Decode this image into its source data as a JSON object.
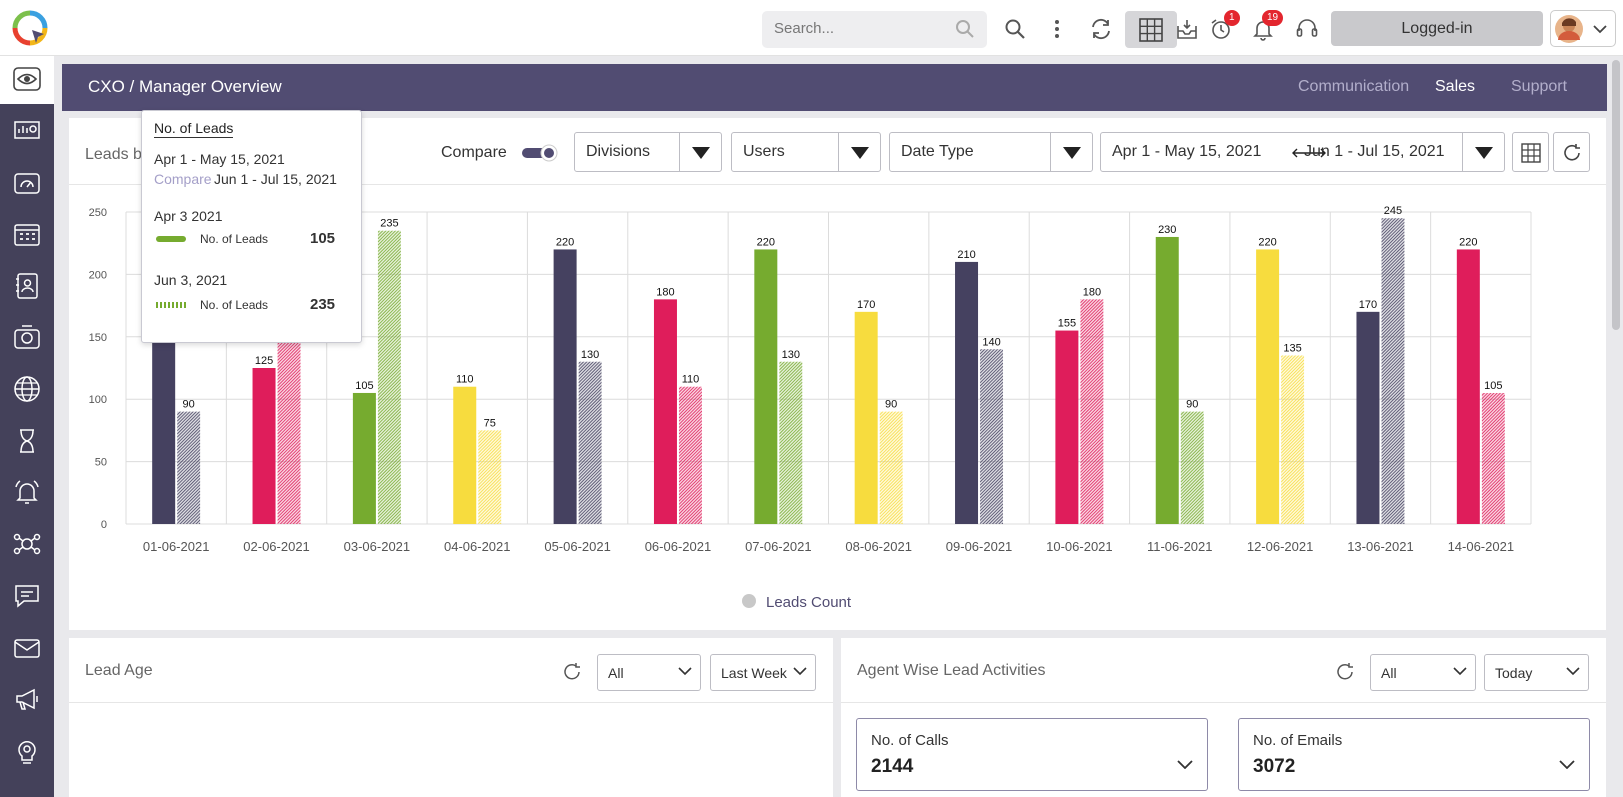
{
  "topbar": {
    "search_placeholder": "Search...",
    "logged_in_label": "Logged-in",
    "alarm_badge": "1",
    "notification_badge": "19"
  },
  "header": {
    "title": "CXO / Manager Overview",
    "tabs": [
      {
        "label": "Communication",
        "active": false
      },
      {
        "label": "Sales",
        "active": true
      },
      {
        "label": "Support",
        "active": false
      }
    ]
  },
  "chart_panel": {
    "title": "Leads b",
    "compare_label": "Compare",
    "divisions_label": "Divisions",
    "users_label": "Users",
    "date_type_label": "Date Type",
    "range_a": "Apr 1 - May 15, 2021",
    "range_b": "Jun 1 - Jul 15, 2021"
  },
  "tooltip": {
    "title": "No. of Leads",
    "range_a": "Apr 1 - May 15, 2021",
    "compare_word": "Compare",
    "range_b": "Jun 1 - Jul 15, 2021",
    "date_a": "Apr 3 2021",
    "series_a_label": "No. of Leads",
    "value_a": "105",
    "date_b": "Jun 3, 2021",
    "series_b_label": "No. of Leads",
    "value_b": "235"
  },
  "chart_data": {
    "type": "bar",
    "categories": [
      "01-06-2021",
      "02-06-2021",
      "03-06-2021",
      "04-06-2021",
      "05-06-2021",
      "06-06-2021",
      "07-06-2021",
      "08-06-2021",
      "09-06-2021",
      "10-06-2021",
      "11-06-2021",
      "12-06-2021",
      "13-06-2021",
      "14-06-2021"
    ],
    "series": [
      {
        "values": [
          155,
          125,
          105,
          110,
          220,
          180,
          220,
          170,
          210,
          155,
          230,
          220,
          170,
          220
        ]
      },
      {
        "values": [
          90,
          150,
          235,
          75,
          130,
          110,
          130,
          90,
          140,
          180,
          90,
          135,
          245,
          105
        ]
      }
    ],
    "bar_colors": [
      "#454160",
      "#df1d5b",
      "#76ab2f",
      "#f7dc3e",
      "#454160",
      "#df1d5b",
      "#76ab2f",
      "#f7dc3e",
      "#454160",
      "#df1d5b",
      "#76ab2f",
      "#f7dc3e",
      "#454160",
      "#df1d5b"
    ],
    "yticks": [
      0,
      50,
      100,
      150,
      200,
      250
    ],
    "ylim": [
      0,
      250
    ],
    "legend": "Leads Count",
    "legend_placement": "bottom-center",
    "grid": true
  },
  "lead_age": {
    "title": "Lead Age",
    "filter_label": "All",
    "period_label": "Last Week"
  },
  "agent_activities": {
    "title": "Agent Wise Lead Activities",
    "filter_label": "All",
    "period_label": "Today",
    "calls_label": "No. of Calls",
    "calls_value": "2144",
    "emails_label": "No. of Emails",
    "emails_value": "3072"
  }
}
